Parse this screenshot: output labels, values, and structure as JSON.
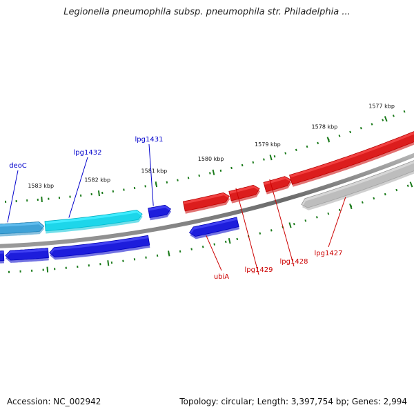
{
  "title": "Legionella pneumophila subsp. pneumophila str. Philadelphia ...",
  "footer": {
    "accession": "Accession: NC_002942",
    "summary": "Topology: circular; Length: 3,397,754 bp; Genes: 2,994"
  },
  "ticks": [
    {
      "label": "1583 kbp",
      "pos": 0.115
    },
    {
      "label": "1582 kbp",
      "pos": 0.255
    },
    {
      "label": "1581 kbp",
      "pos": 0.395
    },
    {
      "label": "1580 kbp",
      "pos": 0.535
    },
    {
      "label": "1579 kbp",
      "pos": 0.675
    },
    {
      "label": "1578 kbp",
      "pos": 0.815
    },
    {
      "label": "1577 kbp",
      "pos": 0.955
    }
  ],
  "genes": [
    {
      "name": "deoC",
      "strand": "forward",
      "start": 0.0,
      "end": 0.115,
      "color": "#2aa6e8",
      "label": "deoC",
      "labelColor": "#0000cc"
    },
    {
      "name": "lpg1432",
      "strand": "forward",
      "start": 0.118,
      "end": 0.35,
      "color": "#00e6ff",
      "label": "lpg1432",
      "labelColor": "#0000cc"
    },
    {
      "name": "lpg1431",
      "strand": "forward",
      "start": 0.366,
      "end": 0.418,
      "color": "#0000ee",
      "label": "lpg1431",
      "labelColor": "#0000cc"
    },
    {
      "name": "rev-blue-1",
      "strand": "reverse",
      "start": 0.0,
      "end": 0.016,
      "color": "#0000ee",
      "label": "",
      "labelColor": "#0000cc"
    },
    {
      "name": "rev-blue-2",
      "strand": "reverse",
      "start": 0.02,
      "end": 0.12,
      "color": "#0000ee",
      "label": "",
      "labelColor": "#0000cc"
    },
    {
      "name": "rev-blue-3",
      "strand": "reverse",
      "start": 0.123,
      "end": 0.355,
      "color": "#0000ee",
      "label": "",
      "labelColor": "#0000cc"
    },
    {
      "name": "ubiA",
      "strand": "reverse",
      "start": 0.45,
      "end": 0.563,
      "color": "#0000ee",
      "label": "ubiA",
      "labelColor": "#cc0000"
    },
    {
      "name": "red-1",
      "strand": "forward",
      "start": 0.45,
      "end": 0.558,
      "color": "#ee0000",
      "label": "",
      "labelColor": "#cc0000"
    },
    {
      "name": "lpg1429",
      "strand": "forward",
      "start": 0.56,
      "end": 0.63,
      "color": "#ee0000",
      "label": "lpg1429",
      "labelColor": "#cc0000"
    },
    {
      "name": "lpg1428",
      "strand": "forward",
      "start": 0.643,
      "end": 0.705,
      "color": "#ee0000",
      "label": "lpg1428",
      "labelColor": "#cc0000"
    },
    {
      "name": "red-big",
      "strand": "forward",
      "start": 0.705,
      "end": 1.02,
      "color": "#ee0000",
      "label": "",
      "labelColor": "#cc0000"
    },
    {
      "name": "lpg1427",
      "strand": "reverse",
      "start": 0.712,
      "end": 1.02,
      "color": "#c8c8c8",
      "label": "lpg1427",
      "labelColor": "#cc0000"
    }
  ]
}
